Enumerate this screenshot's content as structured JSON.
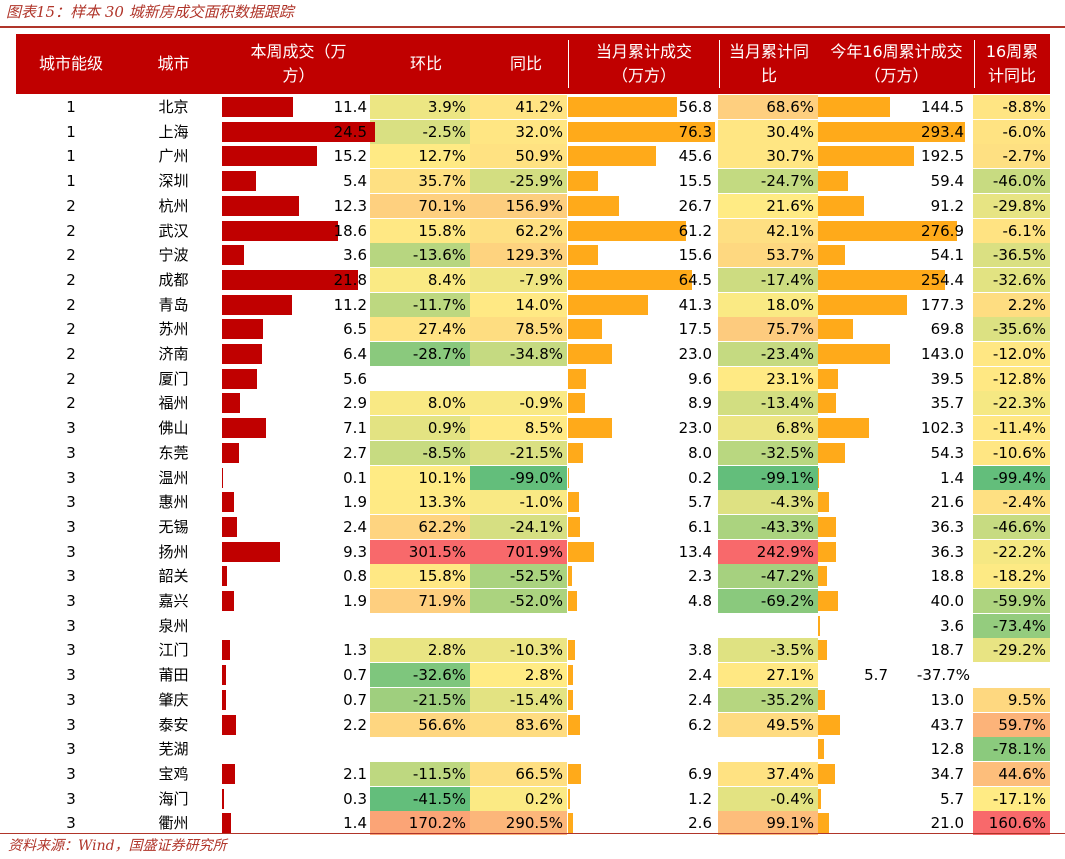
{
  "caption": "图表15：样本 30 城新房成交面积数据跟踪",
  "footer": "资料来源：Wind，国盛证券研究所",
  "colors": {
    "header_bg": "#c00000",
    "bar_weekly": "#c00000",
    "bar_month": "#ffaa1a",
    "bar_ytd": "#ffaa1a"
  },
  "headers": {
    "tier": "城市能级",
    "city": "城市",
    "weekly": "本周成交（万\n方）",
    "wow": "环比",
    "yoy": "同比",
    "month": "当月累计成交\n（万方）",
    "month_yoy": "当月累计同\n比",
    "ytd": "今年16周累计成交\n（万方）",
    "ytd_yoy": "16周累\n计同比"
  },
  "rows": [
    {
      "tier": "1",
      "city": "北京",
      "weekly": "11.4",
      "weekly_v": 11.4,
      "wow": "3.9%",
      "wow_v": 3.9,
      "yoy": "41.2%",
      "yoy_v": 41.2,
      "month": "56.8",
      "month_v": 56.8,
      "month_yoy": "68.6%",
      "month_yoy_v": 68.6,
      "ytd": "144.5",
      "ytd_v": 144.5,
      "ytd_yoy": "-8.8%",
      "ytd_yoy_v": -8.8
    },
    {
      "tier": "1",
      "city": "上海",
      "weekly": "24.5",
      "weekly_v": 24.5,
      "wow": "-2.5%",
      "wow_v": -2.5,
      "yoy": "32.0%",
      "yoy_v": 32.0,
      "month": "76.3",
      "month_v": 76.3,
      "month_yoy": "30.4%",
      "month_yoy_v": 30.4,
      "ytd": "293.4",
      "ytd_v": 293.4,
      "ytd_yoy": "-6.0%",
      "ytd_yoy_v": -6.0
    },
    {
      "tier": "1",
      "city": "广州",
      "weekly": "15.2",
      "weekly_v": 15.2,
      "wow": "12.7%",
      "wow_v": 12.7,
      "yoy": "50.9%",
      "yoy_v": 50.9,
      "month": "45.6",
      "month_v": 45.6,
      "month_yoy": "30.7%",
      "month_yoy_v": 30.7,
      "ytd": "192.5",
      "ytd_v": 192.5,
      "ytd_yoy": "-2.7%",
      "ytd_yoy_v": -2.7
    },
    {
      "tier": "1",
      "city": "深圳",
      "weekly": "5.4",
      "weekly_v": 5.4,
      "wow": "35.7%",
      "wow_v": 35.7,
      "yoy": "-25.9%",
      "yoy_v": -25.9,
      "month": "15.5",
      "month_v": 15.5,
      "month_yoy": "-24.7%",
      "month_yoy_v": -24.7,
      "ytd": "59.4",
      "ytd_v": 59.4,
      "ytd_yoy": "-46.0%",
      "ytd_yoy_v": -46.0
    },
    {
      "tier": "2",
      "city": "杭州",
      "weekly": "12.3",
      "weekly_v": 12.3,
      "wow": "70.1%",
      "wow_v": 70.1,
      "yoy": "156.9%",
      "yoy_v": 156.9,
      "month": "26.7",
      "month_v": 26.7,
      "month_yoy": "21.6%",
      "month_yoy_v": 21.6,
      "ytd": "91.2",
      "ytd_v": 91.2,
      "ytd_yoy": "-29.8%",
      "ytd_yoy_v": -29.8
    },
    {
      "tier": "2",
      "city": "武汉",
      "weekly": "18.6",
      "weekly_v": 18.6,
      "wow": "15.8%",
      "wow_v": 15.8,
      "yoy": "62.2%",
      "yoy_v": 62.2,
      "month": "61.2",
      "month_v": 61.2,
      "month_yoy": "42.1%",
      "month_yoy_v": 42.1,
      "ytd": "276.9",
      "ytd_v": 276.9,
      "ytd_yoy": "-6.1%",
      "ytd_yoy_v": -6.1
    },
    {
      "tier": "2",
      "city": "宁波",
      "weekly": "3.6",
      "weekly_v": 3.6,
      "wow": "-13.6%",
      "wow_v": -13.6,
      "yoy": "129.3%",
      "yoy_v": 129.3,
      "month": "15.6",
      "month_v": 15.6,
      "month_yoy": "53.7%",
      "month_yoy_v": 53.7,
      "ytd": "54.1",
      "ytd_v": 54.1,
      "ytd_yoy": "-36.5%",
      "ytd_yoy_v": -36.5
    },
    {
      "tier": "2",
      "city": "成都",
      "weekly": "21.8",
      "weekly_v": 21.8,
      "wow": "8.4%",
      "wow_v": 8.4,
      "yoy": "-7.9%",
      "yoy_v": -7.9,
      "month": "64.5",
      "month_v": 64.5,
      "month_yoy": "-17.4%",
      "month_yoy_v": -17.4,
      "ytd": "254.4",
      "ytd_v": 254.4,
      "ytd_yoy": "-32.6%",
      "ytd_yoy_v": -32.6
    },
    {
      "tier": "2",
      "city": "青岛",
      "weekly": "11.2",
      "weekly_v": 11.2,
      "wow": "-11.7%",
      "wow_v": -11.7,
      "yoy": "14.0%",
      "yoy_v": 14.0,
      "month": "41.3",
      "month_v": 41.3,
      "month_yoy": "18.0%",
      "month_yoy_v": 18.0,
      "ytd": "177.3",
      "ytd_v": 177.3,
      "ytd_yoy": "2.2%",
      "ytd_yoy_v": 2.2
    },
    {
      "tier": "2",
      "city": "苏州",
      "weekly": "6.5",
      "weekly_v": 6.5,
      "wow": "27.4%",
      "wow_v": 27.4,
      "yoy": "78.5%",
      "yoy_v": 78.5,
      "month": "17.5",
      "month_v": 17.5,
      "month_yoy": "75.7%",
      "month_yoy_v": 75.7,
      "ytd": "69.8",
      "ytd_v": 69.8,
      "ytd_yoy": "-35.6%",
      "ytd_yoy_v": -35.6
    },
    {
      "tier": "2",
      "city": "济南",
      "weekly": "6.4",
      "weekly_v": 6.4,
      "wow": "-28.7%",
      "wow_v": -28.7,
      "yoy": "-34.8%",
      "yoy_v": -34.8,
      "month": "23.0",
      "month_v": 23.0,
      "month_yoy": "-23.4%",
      "month_yoy_v": -23.4,
      "ytd": "143.0",
      "ytd_v": 143.0,
      "ytd_yoy": "-12.0%",
      "ytd_yoy_v": -12.0
    },
    {
      "tier": "2",
      "city": "厦门",
      "weekly": "5.6",
      "weekly_v": 5.6,
      "wow": "",
      "wow_v": null,
      "yoy": "",
      "yoy_v": null,
      "month": "9.6",
      "month_v": 9.6,
      "month_yoy": "23.1%",
      "month_yoy_v": 23.1,
      "ytd": "39.5",
      "ytd_v": 39.5,
      "ytd_yoy": "-12.8%",
      "ytd_yoy_v": -12.8
    },
    {
      "tier": "2",
      "city": "福州",
      "weekly": "2.9",
      "weekly_v": 2.9,
      "wow": "8.0%",
      "wow_v": 8.0,
      "yoy": "-0.9%",
      "yoy_v": -0.9,
      "month": "8.9",
      "month_v": 8.9,
      "month_yoy": "-13.4%",
      "month_yoy_v": -13.4,
      "ytd": "35.7",
      "ytd_v": 35.7,
      "ytd_yoy": "-22.3%",
      "ytd_yoy_v": -22.3
    },
    {
      "tier": "3",
      "city": "佛山",
      "weekly": "7.1",
      "weekly_v": 7.1,
      "wow": "0.9%",
      "wow_v": 0.9,
      "yoy": "8.5%",
      "yoy_v": 8.5,
      "month": "23.0",
      "month_v": 23.0,
      "month_yoy": "6.8%",
      "month_yoy_v": 6.8,
      "ytd": "102.3",
      "ytd_v": 102.3,
      "ytd_yoy": "-11.4%",
      "ytd_yoy_v": -11.4
    },
    {
      "tier": "3",
      "city": "东莞",
      "weekly": "2.7",
      "weekly_v": 2.7,
      "wow": "-8.5%",
      "wow_v": -8.5,
      "yoy": "-21.5%",
      "yoy_v": -21.5,
      "month": "8.0",
      "month_v": 8.0,
      "month_yoy": "-32.5%",
      "month_yoy_v": -32.5,
      "ytd": "54.3",
      "ytd_v": 54.3,
      "ytd_yoy": "-10.6%",
      "ytd_yoy_v": -10.6
    },
    {
      "tier": "3",
      "city": "温州",
      "weekly": "0.1",
      "weekly_v": 0.1,
      "wow": "10.1%",
      "wow_v": 10.1,
      "yoy": "-99.0%",
      "yoy_v": -99.0,
      "month": "0.2",
      "month_v": 0.2,
      "month_yoy": "-99.1%",
      "month_yoy_v": -99.1,
      "ytd": "1.4",
      "ytd_v": 1.4,
      "ytd_yoy": "-99.4%",
      "ytd_yoy_v": -99.4
    },
    {
      "tier": "3",
      "city": "惠州",
      "weekly": "1.9",
      "weekly_v": 1.9,
      "wow": "13.3%",
      "wow_v": 13.3,
      "yoy": "-1.0%",
      "yoy_v": -1.0,
      "month": "5.7",
      "month_v": 5.7,
      "month_yoy": "-4.3%",
      "month_yoy_v": -4.3,
      "ytd": "21.6",
      "ytd_v": 21.6,
      "ytd_yoy": "-2.4%",
      "ytd_yoy_v": -2.4
    },
    {
      "tier": "3",
      "city": "无锡",
      "weekly": "2.4",
      "weekly_v": 2.4,
      "wow": "62.2%",
      "wow_v": 62.2,
      "yoy": "-24.1%",
      "yoy_v": -24.1,
      "month": "6.1",
      "month_v": 6.1,
      "month_yoy": "-43.3%",
      "month_yoy_v": -43.3,
      "ytd": "36.3",
      "ytd_v": 36.3,
      "ytd_yoy": "-46.6%",
      "ytd_yoy_v": -46.6
    },
    {
      "tier": "3",
      "city": "扬州",
      "weekly": "9.3",
      "weekly_v": 9.3,
      "wow": "301.5%",
      "wow_v": 301.5,
      "yoy": "701.9%",
      "yoy_v": 701.9,
      "month": "13.4",
      "month_v": 13.4,
      "month_yoy": "242.9%",
      "month_yoy_v": 242.9,
      "ytd": "36.3",
      "ytd_v": 36.3,
      "ytd_yoy": "-22.2%",
      "ytd_yoy_v": -22.2
    },
    {
      "tier": "3",
      "city": "韶关",
      "weekly": "0.8",
      "weekly_v": 0.8,
      "wow": "15.8%",
      "wow_v": 15.8,
      "yoy": "-52.5%",
      "yoy_v": -52.5,
      "month": "2.3",
      "month_v": 2.3,
      "month_yoy": "-47.2%",
      "month_yoy_v": -47.2,
      "ytd": "18.8",
      "ytd_v": 18.8,
      "ytd_yoy": "-18.2%",
      "ytd_yoy_v": -18.2
    },
    {
      "tier": "3",
      "city": "嘉兴",
      "weekly": "1.9",
      "weekly_v": 1.9,
      "wow": "71.9%",
      "wow_v": 71.9,
      "yoy": "-52.0%",
      "yoy_v": -52.0,
      "month": "4.8",
      "month_v": 4.8,
      "month_yoy": "-69.2%",
      "month_yoy_v": -69.2,
      "ytd": "40.0",
      "ytd_v": 40.0,
      "ytd_yoy": "-59.9%",
      "ytd_yoy_v": -59.9
    },
    {
      "tier": "3",
      "city": "泉州",
      "weekly": "",
      "weekly_v": null,
      "wow": "",
      "wow_v": null,
      "yoy": "",
      "yoy_v": null,
      "month": "",
      "month_v": null,
      "month_yoy": "",
      "month_yoy_v": null,
      "ytd": "3.6",
      "ytd_v": 3.6,
      "ytd_yoy": "-73.4%",
      "ytd_yoy_v": -73.4
    },
    {
      "tier": "3",
      "city": "江门",
      "weekly": "1.3",
      "weekly_v": 1.3,
      "wow": "2.8%",
      "wow_v": 2.8,
      "yoy": "-10.3%",
      "yoy_v": -10.3,
      "month": "3.8",
      "month_v": 3.8,
      "month_yoy": "-3.5%",
      "month_yoy_v": -3.5,
      "ytd": "18.7",
      "ytd_v": 18.7,
      "ytd_yoy": "-29.2%",
      "ytd_yoy_v": -29.2
    },
    {
      "tier": "3",
      "city": "莆田",
      "weekly": "0.7",
      "weekly_v": 0.7,
      "wow": "-32.6%",
      "wow_v": -32.6,
      "yoy": "2.8%",
      "yoy_v": 2.8,
      "month": "2.4",
      "month_v": 2.4,
      "month_yoy": "27.1%",
      "month_yoy_v": 27.1,
      "ytd": "5.7",
      "ytd_v": 5.7,
      "ytd_yoy": "-37.7%",
      "ytd_yoy_v": null,
      "odd": true
    },
    {
      "tier": "3",
      "city": "肇庆",
      "weekly": "0.7",
      "weekly_v": 0.7,
      "wow": "-21.5%",
      "wow_v": -21.5,
      "yoy": "-15.4%",
      "yoy_v": -15.4,
      "month": "2.4",
      "month_v": 2.4,
      "month_yoy": "-35.2%",
      "month_yoy_v": -35.2,
      "ytd": "13.0",
      "ytd_v": 13.0,
      "ytd_yoy": "9.5%",
      "ytd_yoy_v": 9.5
    },
    {
      "tier": "3",
      "city": "泰安",
      "weekly": "2.2",
      "weekly_v": 2.2,
      "wow": "56.6%",
      "wow_v": 56.6,
      "yoy": "83.6%",
      "yoy_v": 83.6,
      "month": "6.2",
      "month_v": 6.2,
      "month_yoy": "49.5%",
      "month_yoy_v": 49.5,
      "ytd": "43.7",
      "ytd_v": 43.7,
      "ytd_yoy": "59.7%",
      "ytd_yoy_v": 59.7
    },
    {
      "tier": "3",
      "city": "芜湖",
      "weekly": "",
      "weekly_v": null,
      "wow": "",
      "wow_v": null,
      "yoy": "",
      "yoy_v": null,
      "month": "",
      "month_v": null,
      "month_yoy": "",
      "month_yoy_v": null,
      "ytd": "12.8",
      "ytd_v": 12.8,
      "ytd_yoy": "-78.1%",
      "ytd_yoy_v": -78.1
    },
    {
      "tier": "3",
      "city": "宝鸡",
      "weekly": "2.1",
      "weekly_v": 2.1,
      "wow": "-11.5%",
      "wow_v": -11.5,
      "yoy": "66.5%",
      "yoy_v": 66.5,
      "month": "6.9",
      "month_v": 6.9,
      "month_yoy": "37.4%",
      "month_yoy_v": 37.4,
      "ytd": "34.7",
      "ytd_v": 34.7,
      "ytd_yoy": "44.6%",
      "ytd_yoy_v": 44.6
    },
    {
      "tier": "3",
      "city": "海门",
      "weekly": "0.3",
      "weekly_v": 0.3,
      "wow": "-41.5%",
      "wow_v": -41.5,
      "yoy": "0.2%",
      "yoy_v": 0.2,
      "month": "1.2",
      "month_v": 1.2,
      "month_yoy": "-0.4%",
      "month_yoy_v": -0.4,
      "ytd": "5.7",
      "ytd_v": 5.7,
      "ytd_yoy": "-17.1%",
      "ytd_yoy_v": -17.1
    },
    {
      "tier": "3",
      "city": "衢州",
      "weekly": "1.4",
      "weekly_v": 1.4,
      "wow": "170.2%",
      "wow_v": 170.2,
      "yoy": "290.5%",
      "yoy_v": 290.5,
      "month": "2.6",
      "month_v": 2.6,
      "month_yoy": "99.1%",
      "month_yoy_v": 99.1,
      "ytd": "21.0",
      "ytd_v": 21.0,
      "ytd_yoy": "160.6%",
      "ytd_yoy_v": 160.6
    }
  ]
}
